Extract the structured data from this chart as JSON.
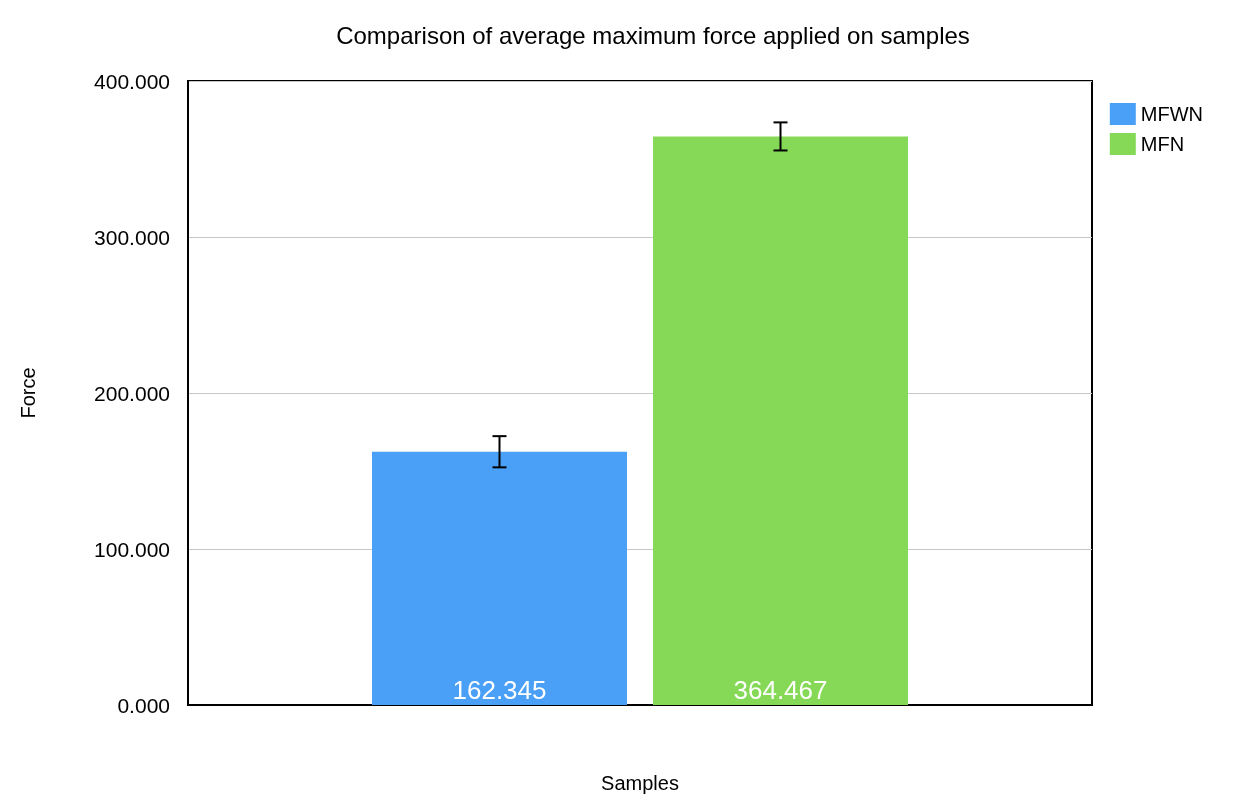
{
  "chart_data": {
    "type": "bar",
    "title": "Comparison of average maximum force applied on samples",
    "xlabel": "Samples",
    "ylabel": "Force",
    "categories": [
      null
    ],
    "series": [
      {
        "name": "MFWN",
        "color": "#4aa0f7",
        "values": [
          162.345
        ],
        "errors": [
          10
        ]
      },
      {
        "name": "MFN",
        "color": "#85d957",
        "values": [
          364.467
        ],
        "errors": [
          9
        ]
      }
    ],
    "ylim": [
      0,
      400
    ],
    "yticks": [
      {
        "value": 0,
        "label": "0.000"
      },
      {
        "value": 100,
        "label": "100.000"
      },
      {
        "value": 200,
        "label": "200.000"
      },
      {
        "value": 300,
        "label": "300.000"
      },
      {
        "value": 400,
        "label": "400.000"
      }
    ],
    "grid": "y",
    "legend": "top right",
    "tick_labels": "y",
    "data_labels": true
  }
}
